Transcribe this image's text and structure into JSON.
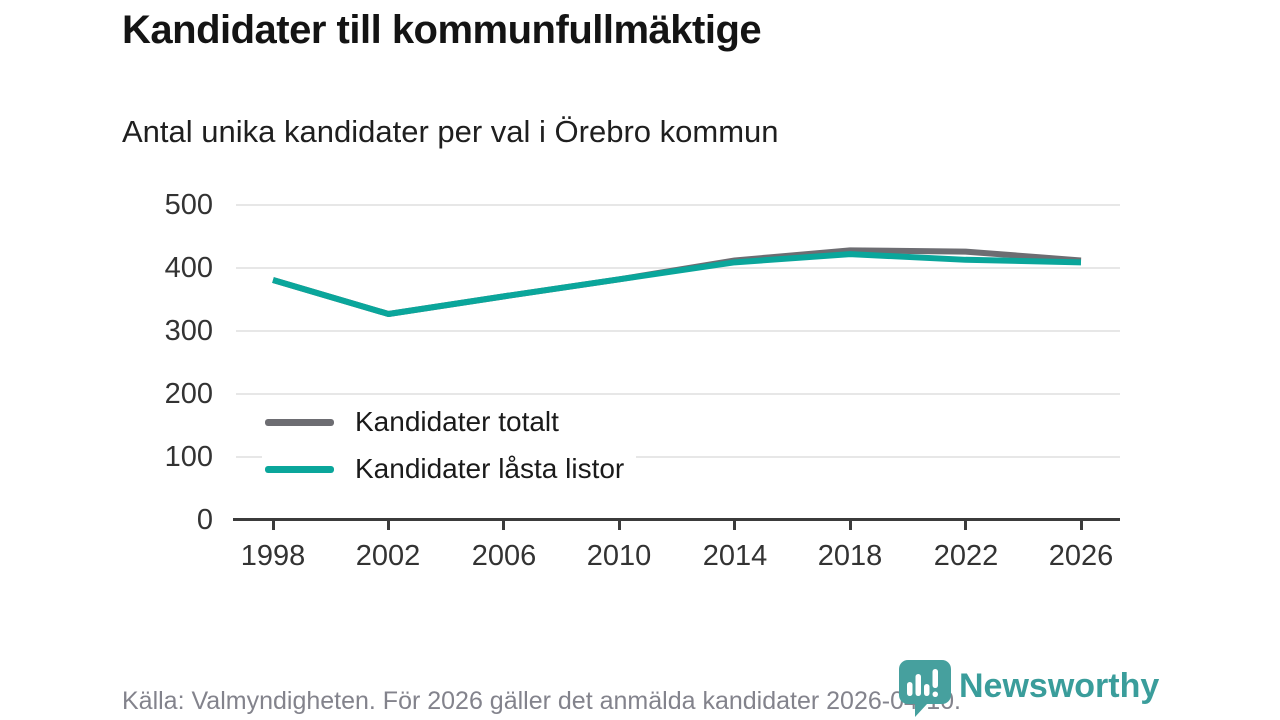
{
  "header": {
    "title": "Kandidater till kommunfullmäktige",
    "subtitle": "Antal unika kandidater per val i Örebro kommun"
  },
  "chart_data": {
    "type": "line",
    "title": "Kandidater till kommunfullmäktige",
    "subtitle": "Antal unika kandidater per val i Örebro kommun",
    "x": [
      1998,
      2002,
      2006,
      2010,
      2014,
      2018,
      2022,
      2026
    ],
    "xticks": [
      "1998",
      "2002",
      "2006",
      "2010",
      "2014",
      "2018",
      "2022",
      "2026"
    ],
    "yticks": [
      0,
      100,
      200,
      300,
      400,
      500
    ],
    "ylim": [
      0,
      500
    ],
    "grid": "horizontal-only",
    "legend_position": "inside-bottom-left",
    "series": [
      {
        "name": "Kandidater totalt",
        "color": "#6d6d72",
        "values": [
          381,
          327,
          355,
          382,
          412,
          428,
          426,
          412
        ]
      },
      {
        "name": "Kandidater låsta listor",
        "color": "#0aa69b",
        "values": [
          381,
          327,
          355,
          382,
          409,
          422,
          413,
          409
        ]
      }
    ]
  },
  "footer": {
    "source": "Källa: Valmyndigheten. För 2026 gäller det anmälda kandidater 2026-04-10.",
    "brand_name": "Newsworthy",
    "brand_color": "#3a9d9b"
  },
  "colors": {
    "background": "#ffffff",
    "grid": "#e7e7e7",
    "axis": "#3b3b3b",
    "tick_text": "#333333",
    "muted_text": "#83838c"
  }
}
